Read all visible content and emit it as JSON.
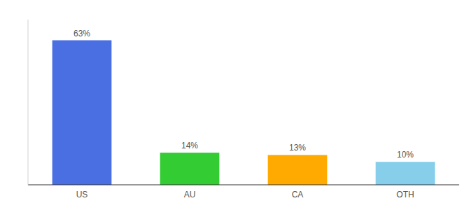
{
  "chart_data": {
    "type": "bar",
    "categories": [
      "US",
      "AU",
      "CA",
      "OTH"
    ],
    "values": [
      63,
      14,
      13,
      10
    ],
    "value_labels": [
      "63%",
      "14%",
      "13%",
      "10%"
    ],
    "data_labels": true,
    "colors": [
      "#4a6fe3",
      "#33cc33",
      "#ffaa00",
      "#87ceeb"
    ],
    "ylim": [
      0,
      72
    ],
    "tick_labels": "x"
  }
}
